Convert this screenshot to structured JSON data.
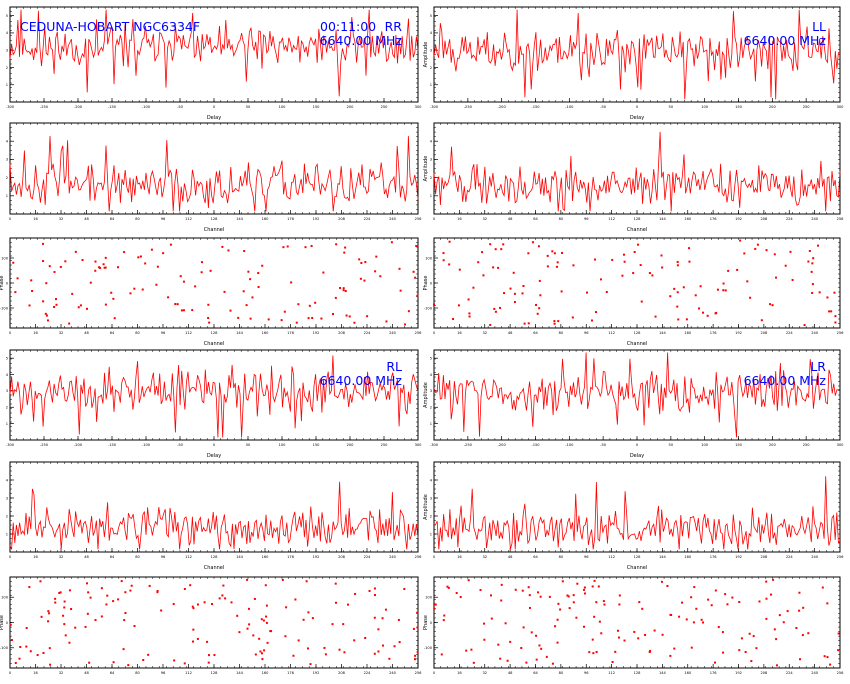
{
  "colors": {
    "trace": "#ff0000",
    "frame": "#000000",
    "annotation": "#0000ff",
    "background": "#ffffff"
  },
  "header": {
    "source": "CEDUNA-HOBART NGC6334F",
    "time": "00:11:00"
  },
  "groups": [
    {
      "pol": "RR",
      "freq": "6640.00 MHz"
    },
    {
      "pol": "LL",
      "freq": "6640.00 MHz"
    },
    {
      "pol": "RL",
      "freq": "6640.00 MHz"
    },
    {
      "pol": "LR",
      "freq": "6640.00 MHz"
    }
  ],
  "axis_labels": {
    "delay_x": "Delay",
    "channel_x": "Channel",
    "phase_x": "Channel",
    "amplitude_y": "Amplitude",
    "phase_y": "Phase"
  },
  "chart_data": [
    {
      "id": "RR-delay",
      "type": "line",
      "pol": "RR",
      "xlabel": "Delay",
      "ylabel": "",
      "xlim": [
        -300,
        300
      ],
      "ylim": [
        0,
        5.5
      ],
      "seed": 11,
      "npts": 260,
      "base": 3.2,
      "noise": 1.0,
      "spike": 0.06,
      "xticks": [
        -300,
        -250,
        -200,
        -150,
        -100,
        -50,
        0,
        50,
        100,
        150,
        200,
        250,
        300
      ],
      "yticks": [
        1,
        2,
        3,
        4,
        5
      ]
    },
    {
      "id": "LL-delay",
      "type": "line",
      "pol": "LL",
      "xlabel": "Delay",
      "ylabel": "Amplitude",
      "xlim": [
        -300,
        300
      ],
      "ylim": [
        0,
        5.5
      ],
      "seed": 23,
      "npts": 260,
      "base": 3.0,
      "noise": 1.0,
      "spike": 0.06,
      "xticks": [
        -300,
        -250,
        -200,
        -150,
        -100,
        -50,
        0,
        50,
        100,
        150,
        200,
        250,
        300
      ],
      "yticks": [
        1,
        2,
        3,
        4,
        5
      ]
    },
    {
      "id": "RR-channel",
      "type": "line",
      "pol": "RR",
      "xlabel": "Channel",
      "ylabel": "",
      "xlim": [
        0,
        256
      ],
      "ylim": [
        0,
        5
      ],
      "seed": 37,
      "npts": 256,
      "base": 1.6,
      "noise": 0.9,
      "spike": 0.05,
      "xticks": [
        0,
        16,
        32,
        48,
        64,
        80,
        96,
        112,
        128,
        144,
        160,
        176,
        192,
        208,
        224,
        240,
        256
      ],
      "yticks": [
        1,
        2,
        3,
        4
      ]
    },
    {
      "id": "LL-channel",
      "type": "line",
      "pol": "LL",
      "xlabel": "Channel",
      "ylabel": "Amplitude",
      "xlim": [
        0,
        256
      ],
      "ylim": [
        0,
        5
      ],
      "seed": 41,
      "npts": 256,
      "base": 1.6,
      "noise": 0.9,
      "spike": 0.05,
      "xticks": [
        0,
        16,
        32,
        48,
        64,
        80,
        96,
        112,
        128,
        144,
        160,
        176,
        192,
        208,
        224,
        240,
        256
      ],
      "yticks": [
        1,
        2,
        3,
        4
      ]
    },
    {
      "id": "RR-phase",
      "type": "scatter",
      "pol": "RR",
      "xlabel": "Channel",
      "ylabel": "Phase",
      "xlim": [
        0,
        256
      ],
      "ylim": [
        -180,
        180
      ],
      "seed": 53,
      "npts": 130,
      "xticks": [
        0,
        16,
        32,
        48,
        64,
        80,
        96,
        112,
        128,
        144,
        160,
        176,
        192,
        208,
        224,
        240,
        256
      ],
      "yticks": [
        -100,
        0,
        100
      ]
    },
    {
      "id": "LL-phase",
      "type": "scatter",
      "pol": "LL",
      "xlabel": "Channel",
      "ylabel": "Phase",
      "xlim": [
        0,
        256
      ],
      "ylim": [
        -180,
        180
      ],
      "seed": 67,
      "npts": 130,
      "xticks": [
        0,
        16,
        32,
        48,
        64,
        80,
        96,
        112,
        128,
        144,
        160,
        176,
        192,
        208,
        224,
        240,
        256
      ],
      "yticks": [
        -100,
        0,
        100
      ]
    },
    {
      "id": "RL-delay",
      "type": "line",
      "pol": "RL",
      "xlabel": "Delay",
      "ylabel": "",
      "xlim": [
        -300,
        300
      ],
      "ylim": [
        0,
        5.5
      ],
      "seed": 71,
      "npts": 260,
      "base": 2.9,
      "noise": 1.0,
      "spike": 0.06,
      "xticks": [
        -300,
        -250,
        -200,
        -150,
        -100,
        -50,
        0,
        50,
        100,
        150,
        200,
        250,
        300
      ],
      "yticks": [
        1,
        2,
        3,
        4,
        5
      ]
    },
    {
      "id": "LR-delay",
      "type": "line",
      "pol": "LR",
      "xlabel": "Delay",
      "ylabel": "Amplitude",
      "xlim": [
        -300,
        300
      ],
      "ylim": [
        0,
        5.5
      ],
      "seed": 83,
      "npts": 260,
      "base": 2.9,
      "noise": 1.0,
      "spike": 0.06,
      "xticks": [
        -300,
        -250,
        -200,
        -150,
        -100,
        -50,
        0,
        50,
        100,
        150,
        200,
        250,
        300
      ],
      "yticks": [
        1,
        2,
        3,
        4,
        5
      ]
    },
    {
      "id": "RL-channel",
      "type": "line",
      "pol": "RL",
      "xlabel": "Channel",
      "ylabel": "",
      "xlim": [
        0,
        256
      ],
      "ylim": [
        0,
        5
      ],
      "seed": 97,
      "npts": 256,
      "base": 1.3,
      "noise": 0.9,
      "spike": 0.05,
      "xticks": [
        0,
        16,
        32,
        48,
        64,
        80,
        96,
        112,
        128,
        144,
        160,
        176,
        192,
        208,
        224,
        240,
        256
      ],
      "yticks": [
        1,
        2,
        3,
        4
      ]
    },
    {
      "id": "LR-channel",
      "type": "line",
      "pol": "LR",
      "xlabel": "Channel",
      "ylabel": "Amplitude",
      "xlim": [
        0,
        256
      ],
      "ylim": [
        0,
        5
      ],
      "seed": 101,
      "npts": 256,
      "base": 1.3,
      "noise": 0.9,
      "spike": 0.05,
      "xticks": [
        0,
        16,
        32,
        48,
        64,
        80,
        96,
        112,
        128,
        144,
        160,
        176,
        192,
        208,
        224,
        240,
        256
      ],
      "yticks": [
        1,
        2,
        3,
        4
      ]
    },
    {
      "id": "RL-phase",
      "type": "scatter",
      "pol": "RL",
      "xlabel": "Channel",
      "ylabel": "Phase",
      "xlim": [
        0,
        256
      ],
      "ylim": [
        -180,
        180
      ],
      "seed": 113,
      "npts": 150,
      "xticks": [
        0,
        16,
        32,
        48,
        64,
        80,
        96,
        112,
        128,
        144,
        160,
        176,
        192,
        208,
        224,
        240,
        256
      ],
      "yticks": [
        -100,
        0,
        100
      ]
    },
    {
      "id": "LR-phase",
      "type": "scatter",
      "pol": "LR",
      "xlabel": "Channel",
      "ylabel": "Phase",
      "xlim": [
        0,
        256
      ],
      "ylim": [
        -180,
        180
      ],
      "seed": 127,
      "npts": 150,
      "xticks": [
        0,
        16,
        32,
        48,
        64,
        80,
        96,
        112,
        128,
        144,
        160,
        176,
        192,
        208,
        224,
        240,
        256
      ],
      "yticks": [
        -100,
        0,
        100
      ]
    }
  ]
}
